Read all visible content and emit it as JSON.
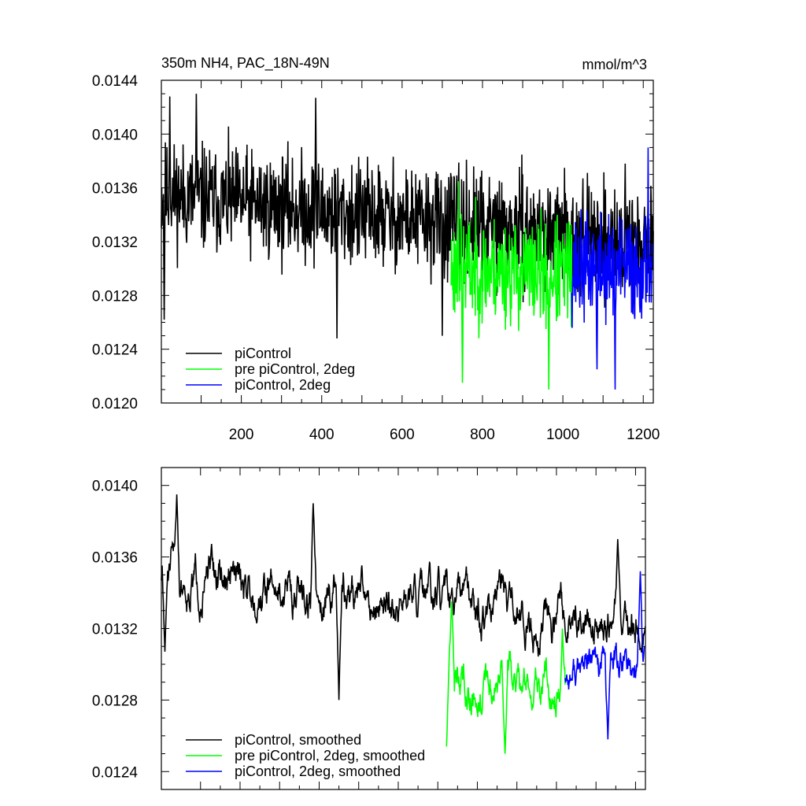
{
  "chart_data": [
    {
      "type": "line",
      "title": "350m NH4, PAC_18N-49N",
      "units": "mmol/m^3",
      "xlabel": "",
      "ylabel": "",
      "xlim": [
        1,
        1225
      ],
      "ylim": [
        0.012,
        0.0144
      ],
      "x_ticks": [
        "200",
        "400",
        "600",
        "800",
        "1000",
        "1200"
      ],
      "y_ticks": [
        "0.0120",
        "0.0124",
        "0.0128",
        "0.0132",
        "0.0136",
        "0.0140",
        "0.0144"
      ],
      "legend_position": "bottom-left",
      "series": [
        {
          "name": "piControl",
          "color": "#000000",
          "x_start": 1,
          "x_end": 1225,
          "level_start": 0.01355,
          "level_end": 0.01318,
          "amplitude": 0.00045,
          "seed": 11,
          "anchors": [
            [
              88,
              0.0143
            ],
            [
              22,
              0.01428
            ],
            [
              385,
              0.01427
            ],
            [
              8,
              0.01262
            ],
            [
              438,
              0.01248
            ],
            [
              1155,
              0.01378
            ],
            [
              700,
              0.0125
            ]
          ]
        },
        {
          "name": "pre piControl, 2deg",
          "color": "#00ff00",
          "x_start": 722,
          "x_end": 1022,
          "level_start": 0.013,
          "level_end": 0.01295,
          "amplitude": 0.00045,
          "seed": 23,
          "anchors": [
            [
              740,
              0.01365
            ],
            [
              750,
              0.01215
            ],
            [
              965,
              0.0121
            ],
            [
              1015,
              0.01335
            ]
          ]
        },
        {
          "name": "piControl, 2deg",
          "color": "#0000ff",
          "x_start": 1022,
          "x_end": 1222,
          "level_start": 0.013,
          "level_end": 0.013,
          "amplitude": 0.00045,
          "seed": 37,
          "anchors": [
            [
              1130,
              0.0121
            ],
            [
              1212,
              0.0139
            ],
            [
              1085,
              0.01225
            ]
          ]
        }
      ]
    },
    {
      "type": "line",
      "title": "",
      "xlabel": "",
      "ylabel": "",
      "xlim": [
        1,
        1225
      ],
      "ylim": [
        0.0123,
        0.0141
      ],
      "x_ticks": [],
      "y_ticks": [
        "0.0124",
        "0.0128",
        "0.0132",
        "0.0136",
        "0.0140"
      ],
      "legend_position": "bottom-left",
      "series": [
        {
          "name": "piControl, smoothed",
          "color": "#000000",
          "x_start": 1,
          "x_end": 1225,
          "level_start": 0.0135,
          "level_end": 0.0132,
          "amplitude": 0.00018,
          "seed": 51,
          "anchors": [
            [
              40,
              0.01395
            ],
            [
              385,
              0.0139
            ],
            [
              450,
              0.0128
            ],
            [
              1155,
              0.0137
            ],
            [
              10,
              0.01307
            ]
          ]
        },
        {
          "name": "pre piControl, 2deg, smoothed",
          "color": "#00ff00",
          "x_start": 722,
          "x_end": 1022,
          "level_start": 0.01292,
          "level_end": 0.0129,
          "amplitude": 0.00018,
          "seed": 63,
          "anchors": [
            [
              722,
              0.01254
            ],
            [
              735,
              0.01335
            ],
            [
              870,
              0.0125
            ],
            [
              1015,
              0.0132
            ]
          ]
        },
        {
          "name": "piControl, 2deg, smoothed",
          "color": "#0000ff",
          "x_start": 1022,
          "x_end": 1222,
          "level_start": 0.01295,
          "level_end": 0.013,
          "amplitude": 0.00016,
          "seed": 77,
          "anchors": [
            [
              1130,
              0.01258
            ],
            [
              1212,
              0.01352
            ],
            [
              1222,
              0.0131
            ]
          ]
        }
      ]
    }
  ]
}
